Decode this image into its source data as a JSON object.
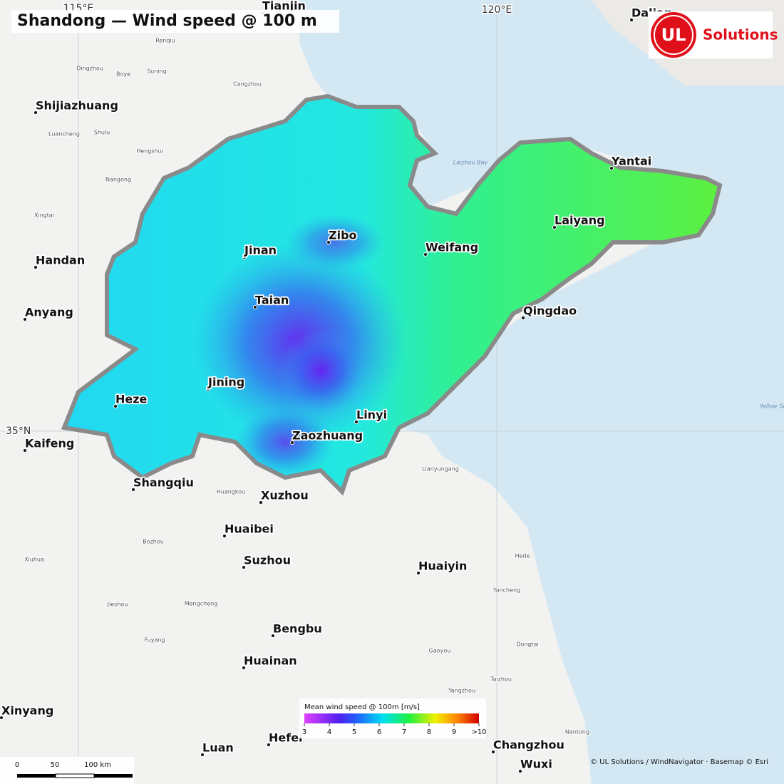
{
  "title": "Shandong — Wind speed @ 100 m",
  "logo": {
    "mark": "UL",
    "text": "Solutions"
  },
  "graticule": {
    "lon1": "115°E",
    "lon2": "120°E",
    "lat1": "35°N"
  },
  "cities": [
    "Tianjin",
    "Dalian",
    "Shijiazhuang",
    "Handan",
    "Anyang",
    "Kaifeng",
    "Heze",
    "Shangqiu",
    "Jinan",
    "Zibo",
    "Weifang",
    "Yantai",
    "Laiyang",
    "Qingdao",
    "Taian",
    "Jining",
    "Linyi",
    "Zaozhuang",
    "Xuzhou",
    "Huaibei",
    "Suzhou",
    "Huaiyin",
    "Bengbu",
    "Huainan",
    "Xinyang",
    "Luan",
    "Hefei",
    "Changzhou",
    "Wuxi"
  ],
  "places": [
    "Renqiu",
    "Dingzhou",
    "Boye",
    "Suning",
    "Cangzhou",
    "Shulu",
    "Luancheng",
    "Hengshui",
    "Nangong",
    "Xingtai",
    "Bozhou",
    "Jieshou",
    "Mengcheng",
    "Fuyang",
    "Hede",
    "Yancheng",
    "Dongtai",
    "Gaoyou",
    "Taizhou",
    "Yangzhou",
    "Nantong",
    "Lianyungang",
    "Huangkou",
    "Xiuhua"
  ],
  "waters": [
    "Laizhou Bay",
    "Yellow Sea"
  ],
  "legend": {
    "title": "Mean wind speed @ 100m [m/s]",
    "ticks": [
      3,
      4,
      5,
      6,
      7,
      8,
      9,
      {
        "value": 10,
        "label": ">10"
      }
    ]
  },
  "scale_bar": {
    "ticks": [
      "0",
      "50",
      "100 km"
    ]
  },
  "attribution": "© UL Solutions / WindNavigator · Basemap © Esri"
}
